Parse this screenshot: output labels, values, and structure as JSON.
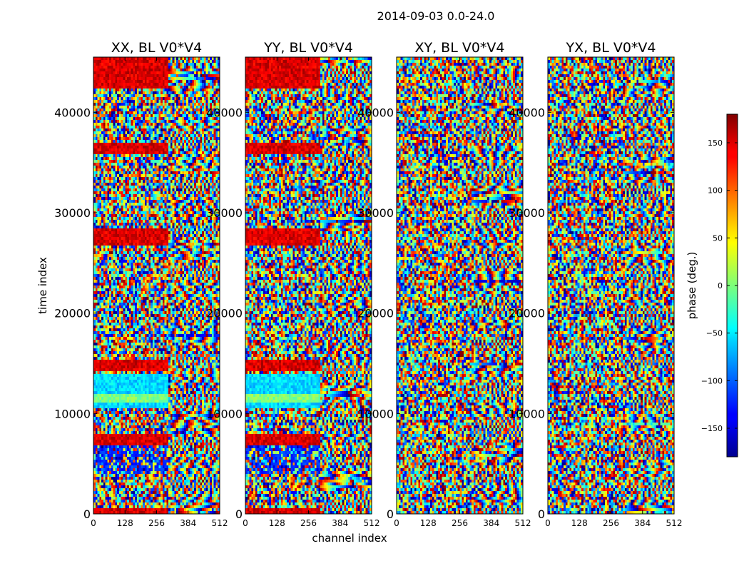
{
  "chart_data": {
    "type": "heatmap",
    "suptitle": "2014-09-03 0.0-24.0",
    "xlabel": "channel index",
    "ylabel": "time index",
    "x_ticks": [
      0,
      128,
      256,
      384,
      512
    ],
    "y_ticks": [
      0,
      10000,
      20000,
      30000,
      40000
    ],
    "xlim": [
      0,
      512
    ],
    "ylim": [
      0,
      45500
    ],
    "colormap": "jet",
    "colorbar": {
      "label": "phase (deg.)",
      "range": [
        -180,
        180
      ],
      "ticks": [
        150,
        100,
        50,
        0,
        -50,
        -100,
        -150
      ],
      "tick_labels": [
        "150",
        "100",
        "50",
        "0",
        "−50",
        "−100",
        "−150"
      ]
    },
    "panels": [
      {
        "title": "XX, BL V0*V4",
        "pol": "XX"
      },
      {
        "title": "YY, BL V0*V4",
        "pol": "YY"
      },
      {
        "title": "XY, BL V0*V4",
        "pol": "XY"
      },
      {
        "title": "YX, BL V0*V4",
        "pol": "YX"
      }
    ]
  }
}
